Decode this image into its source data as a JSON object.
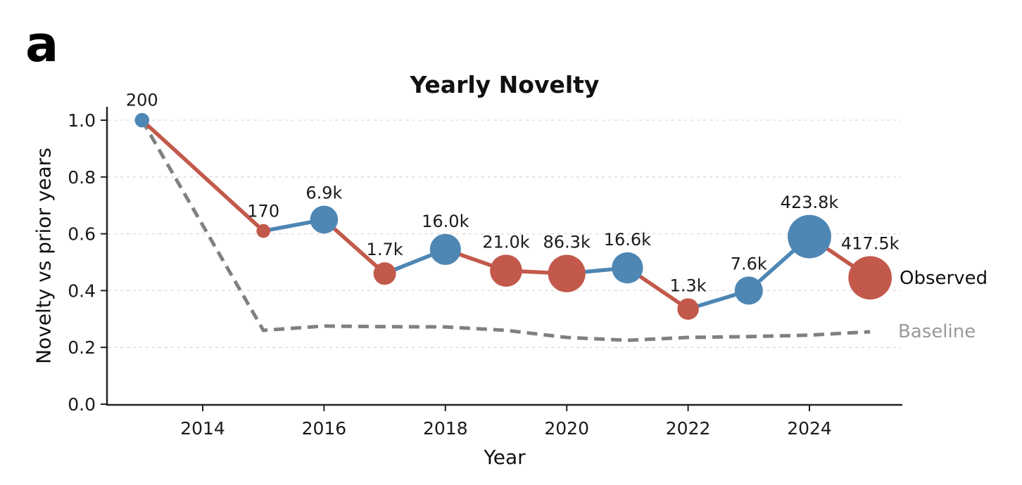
{
  "panel_label": "a",
  "chart_data": {
    "type": "line",
    "title": "Yearly Novelty",
    "xlabel": "Year",
    "ylabel": "Novelty vs prior years",
    "series_labels": {
      "observed": "Observed",
      "baseline": "Baseline"
    },
    "x_ticks": [
      "2014",
      "2016",
      "2018",
      "2020",
      "2022",
      "2024"
    ],
    "x_tick_years": [
      2014,
      2016,
      2018,
      2020,
      2022,
      2024
    ],
    "y_ticks": [
      "1.0",
      "0.8",
      "0.6",
      "0.4",
      "0.2",
      "0.0"
    ],
    "y_tick_values": [
      1.0,
      0.8,
      0.6,
      0.4,
      0.2,
      0.0
    ],
    "xlim": [
      2012.4,
      2025.55
    ],
    "ylim": [
      0,
      1.05
    ],
    "grid": {
      "axis": "y",
      "style": "dashed",
      "color": "#d9d9d9"
    },
    "colors": {
      "increase": "#4e86b4",
      "decrease": "#c2594b",
      "baseline": "#808080",
      "baseline_text": "#9a9a9a",
      "text": "#1a1a1a",
      "spine": "#222222"
    },
    "observed": {
      "name": "Observed",
      "marker": "circle sized by yearly count (log scale)",
      "points": [
        {
          "year": 2013,
          "novelty": 1.0,
          "count": 200,
          "count_label": "200",
          "direction": "increase"
        },
        {
          "year": 2015,
          "novelty": 0.61,
          "count": 170,
          "count_label": "170",
          "direction": "decrease"
        },
        {
          "year": 2016,
          "novelty": 0.65,
          "count": 6900,
          "count_label": "6.9k",
          "direction": "increase"
        },
        {
          "year": 2017,
          "novelty": 0.46,
          "count": 1700,
          "count_label": "1.7k",
          "direction": "decrease"
        },
        {
          "year": 2018,
          "novelty": 0.545,
          "count": 16000,
          "count_label": "16.0k",
          "direction": "increase"
        },
        {
          "year": 2019,
          "novelty": 0.47,
          "count": 21000,
          "count_label": "21.0k",
          "direction": "decrease"
        },
        {
          "year": 2020,
          "novelty": 0.46,
          "count": 86300,
          "count_label": "86.3k",
          "direction": "decrease"
        },
        {
          "year": 2021,
          "novelty": 0.48,
          "count": 16600,
          "count_label": "16.6k",
          "direction": "increase"
        },
        {
          "year": 2022,
          "novelty": 0.335,
          "count": 1300,
          "count_label": "1.3k",
          "direction": "decrease"
        },
        {
          "year": 2023,
          "novelty": 0.4,
          "count": 7600,
          "count_label": "7.6k",
          "direction": "increase"
        },
        {
          "year": 2024,
          "novelty": 0.59,
          "count": 423800,
          "count_label": "423.8k",
          "direction": "increase"
        },
        {
          "year": 2025,
          "novelty": 0.445,
          "count": 417500,
          "count_label": "417.5k",
          "direction": "decrease"
        }
      ]
    },
    "baseline": {
      "name": "Baseline",
      "style": "dashed",
      "points": [
        {
          "year": 2013,
          "novelty": 1.0
        },
        {
          "year": 2015,
          "novelty": 0.26
        },
        {
          "year": 2016,
          "novelty": 0.275
        },
        {
          "year": 2017,
          "novelty": 0.273
        },
        {
          "year": 2018,
          "novelty": 0.272
        },
        {
          "year": 2019,
          "novelty": 0.26
        },
        {
          "year": 2020,
          "novelty": 0.235
        },
        {
          "year": 2021,
          "novelty": 0.225
        },
        {
          "year": 2022,
          "novelty": 0.235
        },
        {
          "year": 2023,
          "novelty": 0.238
        },
        {
          "year": 2024,
          "novelty": 0.243
        },
        {
          "year": 2025,
          "novelty": 0.255
        }
      ]
    }
  }
}
